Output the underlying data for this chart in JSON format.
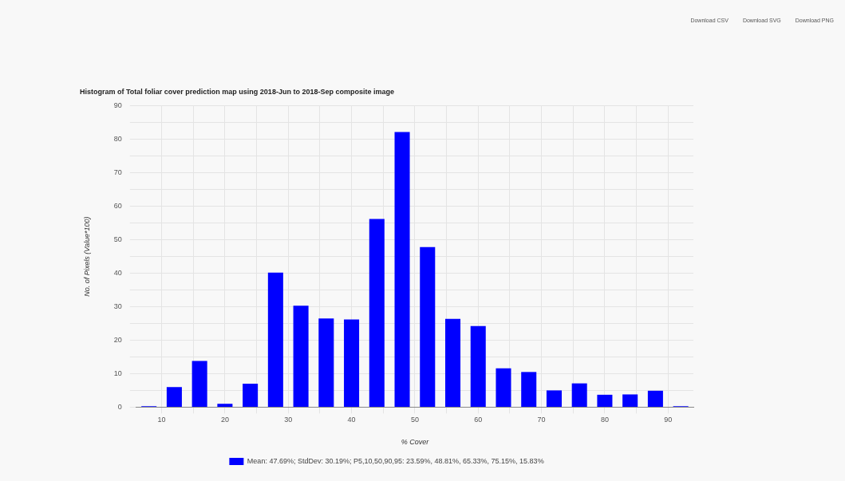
{
  "chart_data": {
    "type": "histogram",
    "title": "Histogram of Total foliar cover prediction map using 2018-Jun to 2018-Sep composite image",
    "xlabel": "% Cover",
    "ylabel": "No. of Pixels (Value*100)",
    "bins": [
      6,
      10,
      14,
      18,
      22,
      26,
      30,
      34,
      38,
      42,
      46,
      50,
      54,
      58,
      62,
      66,
      70,
      74,
      78,
      82,
      86,
      90,
      94
    ],
    "series": [
      {
        "name": "Mean: 47.69%; StdDev: 30.19%; P5,10,50,90,95: 23.59%, 48.81%, 65.33%, 75.15%, 15.83%",
        "color": "#0000ff",
        "values": [
          0.3,
          6,
          13.8,
          1,
          7,
          40.2,
          30.3,
          26.5,
          26.2,
          56.2,
          82.2,
          47.8,
          26.4,
          24.2,
          11.6,
          10.5,
          5,
          7.1,
          3.7,
          3.8,
          4.9,
          0.3
        ]
      }
    ],
    "xlim": [
      6,
      94
    ],
    "xticks": [
      {
        "value": 10,
        "label": "10"
      },
      {
        "value": 15,
        "label": null
      },
      {
        "value": 20,
        "label": "20"
      },
      {
        "value": 25,
        "label": null
      },
      {
        "value": 30,
        "label": "30"
      },
      {
        "value": 35,
        "label": null
      },
      {
        "value": 40,
        "label": "40"
      },
      {
        "value": 45,
        "label": null
      },
      {
        "value": 50,
        "label": "50"
      },
      {
        "value": 55,
        "label": null
      },
      {
        "value": 60,
        "label": "60"
      },
      {
        "value": 65,
        "label": null
      },
      {
        "value": 70,
        "label": "70"
      },
      {
        "value": 75,
        "label": null
      },
      {
        "value": 80,
        "label": "80"
      },
      {
        "value": 85,
        "label": null
      },
      {
        "value": 90,
        "label": "90"
      }
    ],
    "ylim": [
      0,
      90
    ],
    "yticks": [
      0,
      {
        "value": 5,
        "label": null
      },
      10,
      {
        "value": 15,
        "label": null
      },
      20,
      {
        "value": 25,
        "label": null
      },
      30,
      {
        "value": 35,
        "label": null
      },
      40,
      {
        "value": 45,
        "label": null
      },
      50,
      {
        "value": 55,
        "label": null
      },
      60,
      {
        "value": 65,
        "label": null
      },
      70,
      {
        "value": 75,
        "label": null
      },
      80,
      {
        "value": 85,
        "label": null
      },
      90
    ],
    "grid": true,
    "legend": "bottom",
    "annotations": [
      "Download CSV",
      "Download SVG",
      "Download PNG"
    ]
  }
}
